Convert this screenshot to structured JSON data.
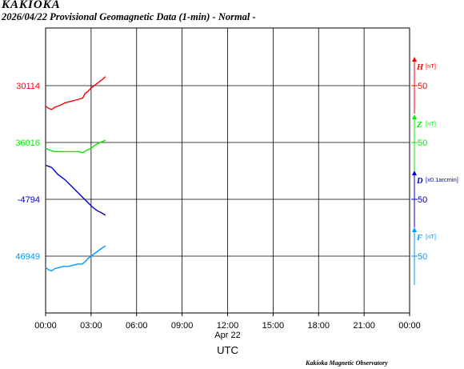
{
  "header": {
    "station": "KAKIOKA",
    "subtitle": "2026/04/22  Provisional Geomagnetic Data (1-min)  - Normal -"
  },
  "footer": {
    "credit": "Kakioka Magnetic Observatory"
  },
  "chart_data": {
    "type": "line",
    "x_ticks": [
      "00:00",
      "03:00",
      "06:00",
      "09:00",
      "12:00",
      "15:00",
      "18:00",
      "21:00",
      "00:00"
    ],
    "x_date_label": "Apr 22",
    "x_axis_label": "UTC",
    "x_range_hours": [
      0,
      24
    ],
    "grid": true,
    "series": [
      {
        "name": "H",
        "unit": "[nT]",
        "color": "#ff0000",
        "base_label": "30114",
        "base_value": 30114,
        "scale_label": "50",
        "scale_value": 50,
        "times_h": [
          0.0,
          0.2,
          0.4,
          0.6,
          0.8,
          1.0,
          1.3,
          1.6,
          1.9,
          2.2,
          2.45,
          2.6,
          2.8,
          3.0,
          3.2,
          3.4,
          3.6,
          3.8,
          3.95
        ],
        "values": [
          30096,
          30094,
          30093,
          30095,
          30096,
          30097,
          30099,
          30100,
          30101,
          30102,
          30103,
          30107,
          30109,
          30112,
          30114,
          30116,
          30118,
          30120,
          30122
        ]
      },
      {
        "name": "Z",
        "unit": "[nT]",
        "color": "#00ee00",
        "base_label": "36016",
        "base_value": 36016,
        "scale_label": "50",
        "scale_value": 50,
        "times_h": [
          0.0,
          0.3,
          0.6,
          1.0,
          1.4,
          1.8,
          2.2,
          2.45,
          2.7,
          3.0,
          3.3,
          3.6,
          3.95
        ],
        "values": [
          36011,
          36009,
          36008,
          36008,
          36008,
          36008,
          36008,
          36007,
          36009,
          36011,
          36014,
          36016,
          36018
        ]
      },
      {
        "name": "D",
        "unit": "[x0.1arcmin]",
        "color": "#0000cc",
        "base_label": "-4794",
        "base_value": -4794,
        "scale_label": "50",
        "scale_value": 50,
        "times_h": [
          0.0,
          0.2,
          0.4,
          0.6,
          0.8,
          1.0,
          1.3,
          1.6,
          1.9,
          2.2,
          2.5,
          2.8,
          3.1,
          3.4,
          3.7,
          3.95
        ],
        "values": [
          -4764,
          -4765,
          -4766,
          -4769,
          -4772,
          -4774,
          -4777,
          -4781,
          -4785,
          -4789,
          -4793,
          -4797,
          -4801,
          -4804,
          -4806,
          -4808
        ]
      },
      {
        "name": "F",
        "unit": "[nT]",
        "color": "#0099ff",
        "base_label": "46949",
        "base_value": 46949,
        "scale_label": "50",
        "scale_value": 50,
        "times_h": [
          0.0,
          0.2,
          0.4,
          0.6,
          0.9,
          1.2,
          1.5,
          1.8,
          2.1,
          2.4,
          2.6,
          2.8,
          3.0,
          3.3,
          3.6,
          3.95
        ],
        "values": [
          46939,
          46937,
          46936,
          46938,
          46939,
          46940,
          46940,
          46941,
          46942,
          46942,
          46944,
          46947,
          46949,
          46952,
          46955,
          46958
        ]
      }
    ]
  }
}
